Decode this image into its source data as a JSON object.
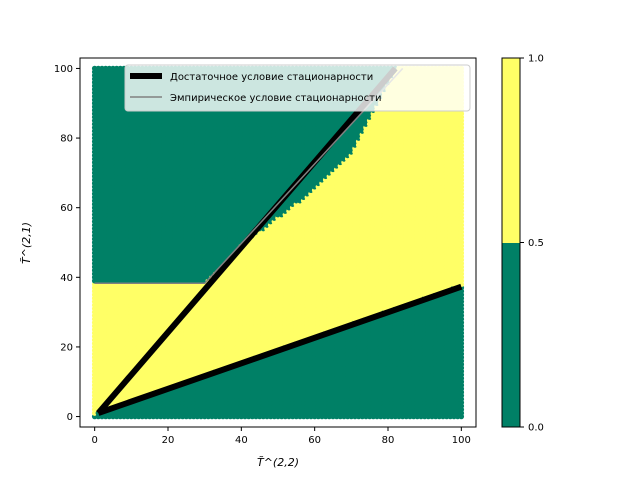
{
  "chart_data": {
    "type": "scatter",
    "xlabel": "T̃^(2,2)",
    "ylabel": "T̃^(2,1)",
    "xlim": [
      -4,
      104
    ],
    "ylim": [
      -3,
      103
    ],
    "x_ticks": [
      0,
      20,
      40,
      60,
      80,
      100
    ],
    "y_ticks": [
      0,
      20,
      40,
      60,
      80,
      100
    ],
    "classes": [
      {
        "value": 0,
        "color": "#008066"
      },
      {
        "value": 1,
        "color": "#ffff66"
      }
    ],
    "regions": {
      "stable_band_lower": {
        "slope": 0.37,
        "intercept": 0.8
      },
      "stable_band_upper_boundary_points": [
        [
          10,
          38
        ],
        [
          30,
          38
        ],
        [
          40,
          49
        ],
        [
          60,
          65
        ],
        [
          70,
          75
        ],
        [
          80,
          95
        ]
      ],
      "top_left_region_y_min": 36,
      "x_range": [
        0,
        100
      ],
      "y_range": [
        0,
        100
      ]
    },
    "series": [
      {
        "name": "Достаточное условие стационарности",
        "lines": [
          [
            [
              1,
              1
            ],
            [
              100,
              37.3
            ]
          ],
          [
            [
              1,
              1
            ],
            [
              82,
              100
            ]
          ]
        ],
        "color": "#000000"
      },
      {
        "name": "Эмпирическое условие стационарности",
        "lines": [
          [
            [
              0,
              38.3
            ],
            [
              30,
              38.3
            ],
            [
              84,
              100
            ]
          ]
        ],
        "color": "#808080"
      }
    ],
    "colorbar": {
      "ticks": [
        0.0,
        0.5,
        1.0
      ],
      "tick_labels": [
        "0.0",
        "0.5",
        "1.0"
      ]
    },
    "legend_position": "top-right"
  }
}
